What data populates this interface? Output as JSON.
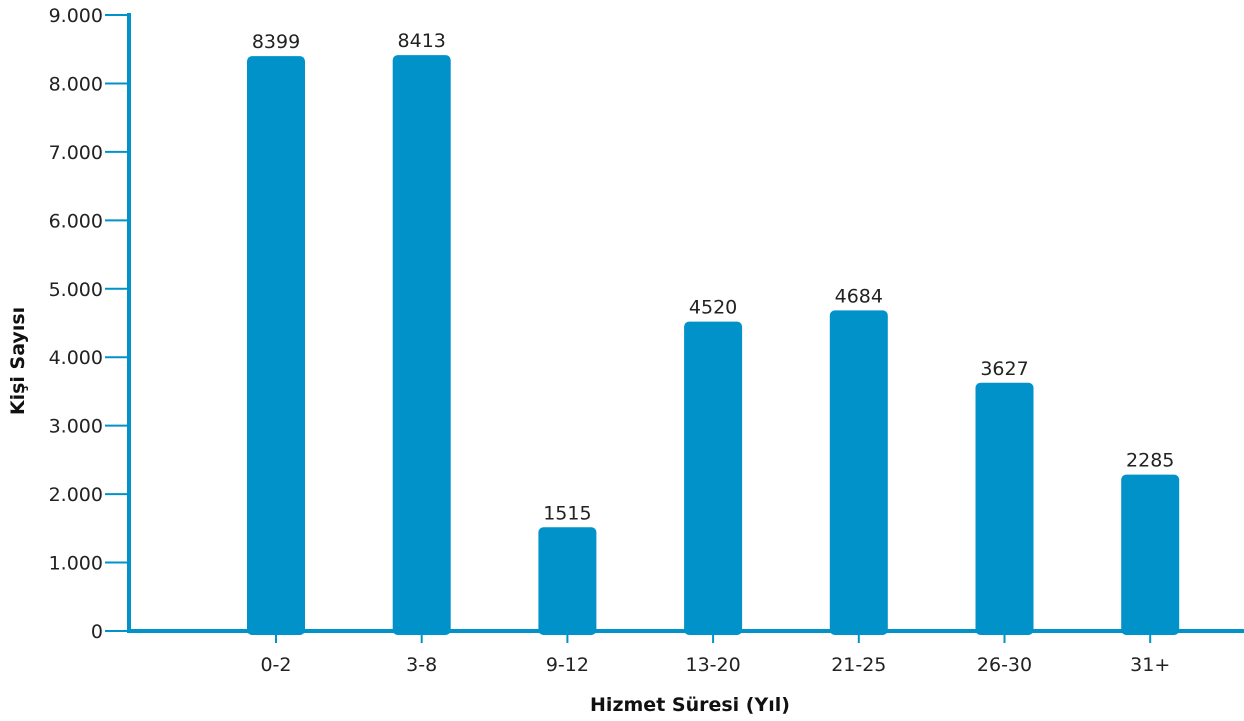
{
  "colors": {
    "bar": "#0092c8",
    "axis": "#0092c8",
    "text": "#222222"
  },
  "chart_data": {
    "type": "bar",
    "categories": [
      "0-2",
      "3-8",
      "9-12",
      "13-20",
      "21-25",
      "26-30",
      "31+"
    ],
    "values": [
      8399,
      8413,
      1515,
      4520,
      4684,
      3627,
      2285
    ],
    "value_labels": [
      "8399",
      "8413",
      "1515",
      "4520",
      "4684",
      "3627",
      "2285"
    ],
    "title": "",
    "xlabel": "Hizmet Süresi (Yıl)",
    "ylabel": "Kişi Sayısı",
    "ylim": [
      0,
      9000
    ],
    "yticks": [
      0,
      1000,
      2000,
      3000,
      4000,
      5000,
      6000,
      7000,
      8000,
      9000
    ],
    "ytick_labels": [
      "0",
      "1.000",
      "2.000",
      "3.000",
      "4.000",
      "5.000",
      "6.000",
      "7.000",
      "8.000",
      "9.000"
    ],
    "grid": false,
    "legend": "none"
  }
}
